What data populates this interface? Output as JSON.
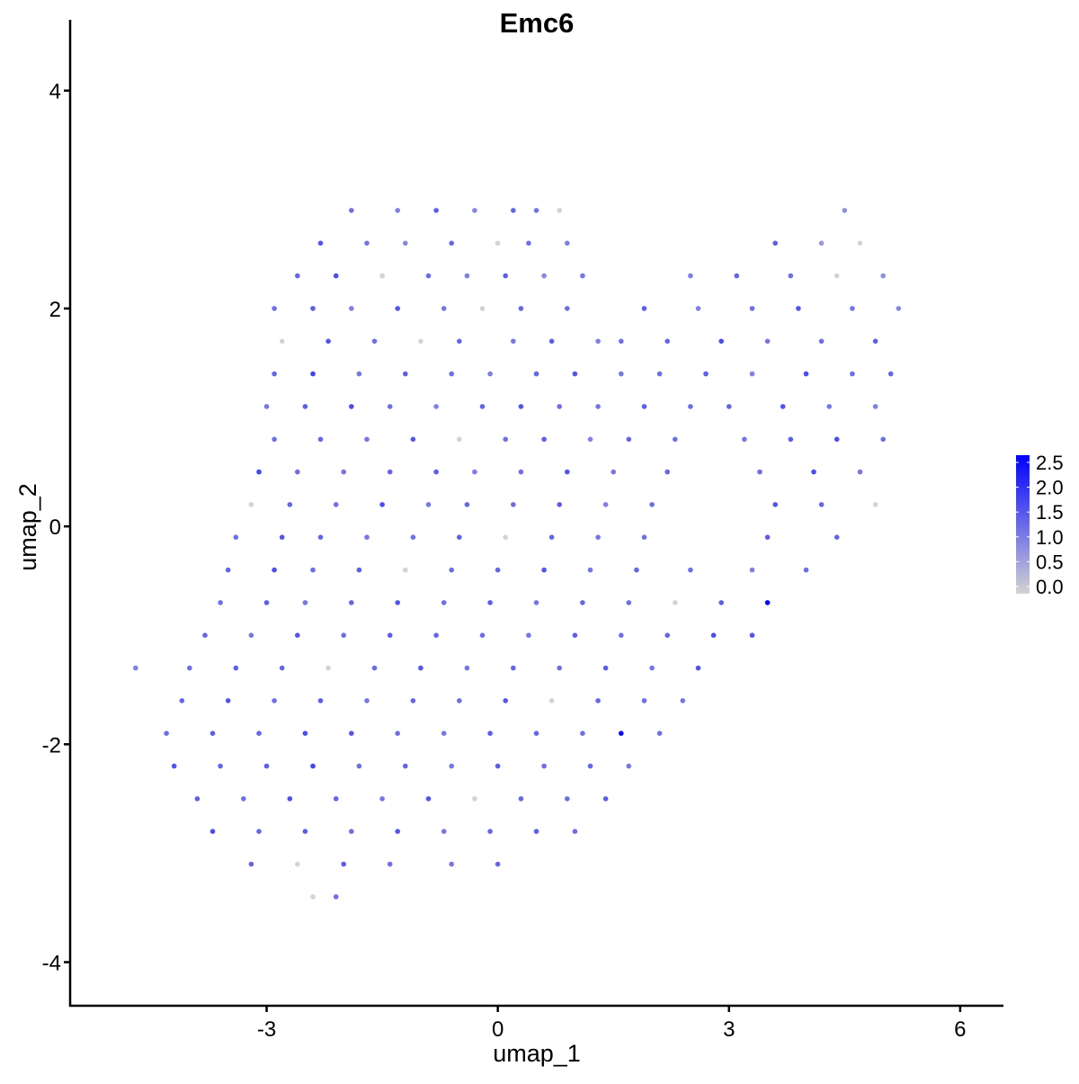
{
  "chart_data": {
    "type": "scatter",
    "title": "Emc6",
    "xlabel": "umap_1",
    "ylabel": "umap_2",
    "xlim": [
      -5.55,
      6.55
    ],
    "ylim": [
      -4.4,
      4.65
    ],
    "xticks": [
      -3,
      0,
      3,
      6
    ],
    "yticks": [
      -4,
      -2,
      0,
      2,
      4
    ],
    "grid": false,
    "legend": {
      "placement": "right",
      "ticks": [
        "0.0",
        "0.5",
        "1.0",
        "1.5",
        "2.0",
        "2.5"
      ],
      "min": 0,
      "max": 2.5,
      "low_color": "#D3D3D3",
      "high_color": "#0000FF"
    },
    "rows": [
      {
        "y": 2.9,
        "x": [
          -1.9,
          -1.3,
          -0.8,
          -0.3,
          0.2,
          0.5,
          0.8,
          4.5
        ],
        "v": [
          1.2,
          1.0,
          1.4,
          0.9,
          1.3,
          1.1,
          0.0,
          0.8
        ]
      },
      {
        "y": 2.6,
        "x": [
          -2.3,
          -1.7,
          -1.2,
          -0.6,
          0.0,
          0.4,
          0.9,
          3.6,
          4.2,
          4.7
        ],
        "v": [
          1.5,
          1.1,
          0.9,
          1.3,
          0.0,
          1.2,
          1.0,
          1.4,
          0.7,
          0.0
        ]
      },
      {
        "y": 2.3,
        "x": [
          -2.6,
          -2.1,
          -1.5,
          -0.9,
          -0.4,
          0.1,
          0.6,
          1.1,
          2.5,
          3.1,
          3.8,
          4.4,
          5.0
        ],
        "v": [
          1.3,
          1.6,
          0.0,
          1.2,
          1.0,
          1.4,
          0.9,
          1.1,
          1.0,
          1.3,
          1.2,
          0.0,
          0.8
        ]
      },
      {
        "y": 2.0,
        "x": [
          -2.9,
          -2.4,
          -1.9,
          -1.3,
          -0.7,
          -0.2,
          0.3,
          0.9,
          1.9,
          2.6,
          3.3,
          3.9,
          4.6,
          5.2
        ],
        "v": [
          1.2,
          1.4,
          1.0,
          1.5,
          1.1,
          0.0,
          1.3,
          1.2,
          1.4,
          1.0,
          1.2,
          1.5,
          1.1,
          0.9
        ]
      },
      {
        "y": 1.7,
        "x": [
          -2.8,
          -2.2,
          -1.6,
          -1.0,
          -0.5,
          0.2,
          0.7,
          1.3,
          1.6,
          2.2,
          2.9,
          3.5,
          4.2,
          4.9
        ],
        "v": [
          0.0,
          1.5,
          1.2,
          0.0,
          1.3,
          1.1,
          1.4,
          1.0,
          1.2,
          1.3,
          1.6,
          1.1,
          1.2,
          1.4
        ]
      },
      {
        "y": 1.4,
        "x": [
          -2.9,
          -2.4,
          -1.8,
          -1.2,
          -0.6,
          -0.1,
          0.5,
          1.0,
          1.6,
          2.1,
          2.7,
          3.3,
          4.0,
          4.6,
          5.1
        ],
        "v": [
          1.3,
          1.7,
          1.1,
          1.4,
          1.2,
          1.0,
          1.3,
          1.5,
          1.1,
          1.2,
          1.4,
          1.0,
          1.6,
          1.2,
          1.3
        ]
      },
      {
        "y": 1.1,
        "x": [
          -3.0,
          -2.5,
          -1.9,
          -1.4,
          -0.8,
          -0.2,
          0.3,
          0.8,
          1.3,
          1.9,
          2.5,
          3.0,
          3.7,
          4.3,
          4.9
        ],
        "v": [
          1.1,
          1.4,
          1.6,
          1.2,
          1.0,
          1.3,
          1.5,
          1.2,
          1.1,
          1.4,
          1.2,
          1.3,
          1.5,
          1.1,
          1.0
        ]
      },
      {
        "y": 0.8,
        "x": [
          -2.9,
          -2.3,
          -1.7,
          -1.1,
          -0.5,
          0.1,
          0.6,
          1.2,
          1.7,
          2.3,
          3.2,
          3.8,
          4.4,
          5.0
        ],
        "v": [
          1.2,
          1.3,
          1.1,
          1.5,
          0.0,
          1.2,
          1.4,
          1.0,
          1.3,
          1.2,
          1.1,
          1.4,
          1.6,
          1.2
        ]
      },
      {
        "y": 0.5,
        "x": [
          -3.1,
          -2.6,
          -2.0,
          -1.4,
          -0.8,
          -0.3,
          0.3,
          0.9,
          1.5,
          2.2,
          3.4,
          4.1,
          4.7
        ],
        "v": [
          1.7,
          1.2,
          1.1,
          1.3,
          1.4,
          1.0,
          1.2,
          1.5,
          1.1,
          1.3,
          1.2,
          1.6,
          1.1
        ]
      },
      {
        "y": 0.2,
        "x": [
          -3.2,
          -2.7,
          -2.1,
          -1.5,
          -0.9,
          -0.4,
          0.2,
          0.8,
          1.4,
          2.0,
          3.6,
          4.2,
          4.9
        ],
        "v": [
          0.0,
          1.3,
          1.2,
          1.6,
          1.1,
          1.3,
          1.2,
          1.4,
          1.0,
          1.2,
          1.5,
          1.3,
          0.0
        ]
      },
      {
        "y": -0.1,
        "x": [
          -3.4,
          -2.8,
          -2.3,
          -1.7,
          -1.1,
          -0.5,
          0.1,
          0.7,
          1.3,
          1.9,
          3.5,
          4.4
        ],
        "v": [
          1.2,
          1.5,
          1.3,
          1.1,
          1.2,
          1.4,
          0.0,
          1.3,
          1.1,
          1.2,
          1.4,
          1.3
        ]
      },
      {
        "y": -0.4,
        "x": [
          -3.5,
          -2.9,
          -2.4,
          -1.8,
          -1.2,
          -0.6,
          0.0,
          0.6,
          1.2,
          1.8,
          2.5,
          3.3,
          4.0
        ],
        "v": [
          1.3,
          1.6,
          1.2,
          1.4,
          0.0,
          1.2,
          1.3,
          1.5,
          1.1,
          1.3,
          1.2,
          1.0,
          1.2
        ]
      },
      {
        "y": -0.7,
        "x": [
          -3.6,
          -3.0,
          -2.5,
          -1.9,
          -1.3,
          -0.7,
          -0.1,
          0.5,
          1.1,
          1.7,
          2.3,
          2.9,
          3.5
        ],
        "v": [
          1.2,
          1.4,
          1.1,
          1.3,
          1.5,
          1.2,
          1.4,
          1.1,
          1.3,
          1.2,
          0.0,
          1.4,
          2.5
        ]
      },
      {
        "y": -1.0,
        "x": [
          -3.8,
          -3.2,
          -2.6,
          -2.0,
          -1.4,
          -0.8,
          -0.2,
          0.4,
          1.0,
          1.6,
          2.2,
          2.8,
          3.3
        ],
        "v": [
          1.3,
          1.1,
          1.5,
          1.2,
          1.4,
          1.3,
          1.2,
          1.1,
          1.4,
          1.2,
          1.3,
          1.6,
          1.5
        ]
      },
      {
        "y": -1.3,
        "x": [
          -4.7,
          -4.0,
          -3.4,
          -2.8,
          -2.2,
          -1.6,
          -1.0,
          -0.4,
          0.2,
          0.8,
          1.4,
          2.0,
          2.6
        ],
        "v": [
          1.0,
          1.2,
          1.4,
          1.3,
          0.0,
          1.2,
          1.5,
          1.1,
          1.3,
          1.2,
          1.4,
          1.1,
          1.5
        ]
      },
      {
        "y": -1.6,
        "x": [
          -4.1,
          -3.5,
          -2.9,
          -2.3,
          -1.7,
          -1.1,
          -0.5,
          0.1,
          0.7,
          1.3,
          1.9,
          2.4
        ],
        "v": [
          1.3,
          1.5,
          1.2,
          1.4,
          1.1,
          1.3,
          1.2,
          1.5,
          0.0,
          1.3,
          1.2,
          1.1
        ]
      },
      {
        "y": -1.9,
        "x": [
          -4.3,
          -3.7,
          -3.1,
          -2.5,
          -1.9,
          -1.3,
          -0.7,
          -0.1,
          0.5,
          1.1,
          1.6,
          2.1
        ],
        "v": [
          1.2,
          1.4,
          1.3,
          1.6,
          1.5,
          1.2,
          1.1,
          1.4,
          1.3,
          1.2,
          2.4,
          1.2
        ]
      },
      {
        "y": -2.2,
        "x": [
          -4.2,
          -3.6,
          -3.0,
          -2.4,
          -1.8,
          -1.2,
          -0.6,
          0.0,
          0.6,
          1.2,
          1.7
        ],
        "v": [
          1.5,
          1.3,
          1.4,
          1.7,
          1.2,
          1.3,
          1.1,
          1.4,
          1.2,
          1.3,
          1.1
        ]
      },
      {
        "y": -2.5,
        "x": [
          -3.9,
          -3.3,
          -2.7,
          -2.1,
          -1.5,
          -0.9,
          -0.3,
          0.3,
          0.9,
          1.4
        ],
        "v": [
          1.4,
          1.2,
          1.6,
          1.3,
          1.1,
          1.5,
          0.0,
          1.3,
          1.2,
          1.4
        ]
      },
      {
        "y": -2.8,
        "x": [
          -3.7,
          -3.1,
          -2.5,
          -1.9,
          -1.3,
          -0.7,
          -0.1,
          0.5,
          1.0
        ],
        "v": [
          1.6,
          1.3,
          1.4,
          1.2,
          1.5,
          1.1,
          1.3,
          1.4,
          1.2
        ]
      },
      {
        "y": -3.1,
        "x": [
          -3.2,
          -2.6,
          -2.0,
          -1.4,
          -0.6,
          0.0
        ],
        "v": [
          1.3,
          0.0,
          1.4,
          1.2,
          1.1,
          1.3
        ]
      },
      {
        "y": -3.4,
        "x": [
          -2.4,
          -2.1
        ],
        "v": [
          0.0,
          1.2
        ]
      }
    ]
  }
}
